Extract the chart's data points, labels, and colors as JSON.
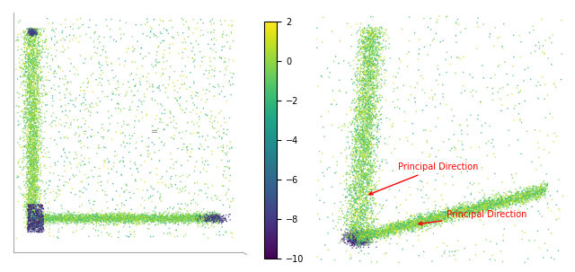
{
  "seed": 42,
  "colormap": "viridis",
  "clim_min": -10,
  "clim_max": 2,
  "colorbar_ticks": [
    2,
    0,
    -2,
    -4,
    -6,
    -8,
    -10
  ],
  "left_panel_label": "=",
  "annotation1_text": "Principal Direction",
  "annotation2_text": "Principal Direction",
  "annotation_color": "red",
  "annotation_fontsize": 7,
  "fig_width": 6.4,
  "fig_height": 3.03,
  "bg_color_left": "#ebebeb"
}
